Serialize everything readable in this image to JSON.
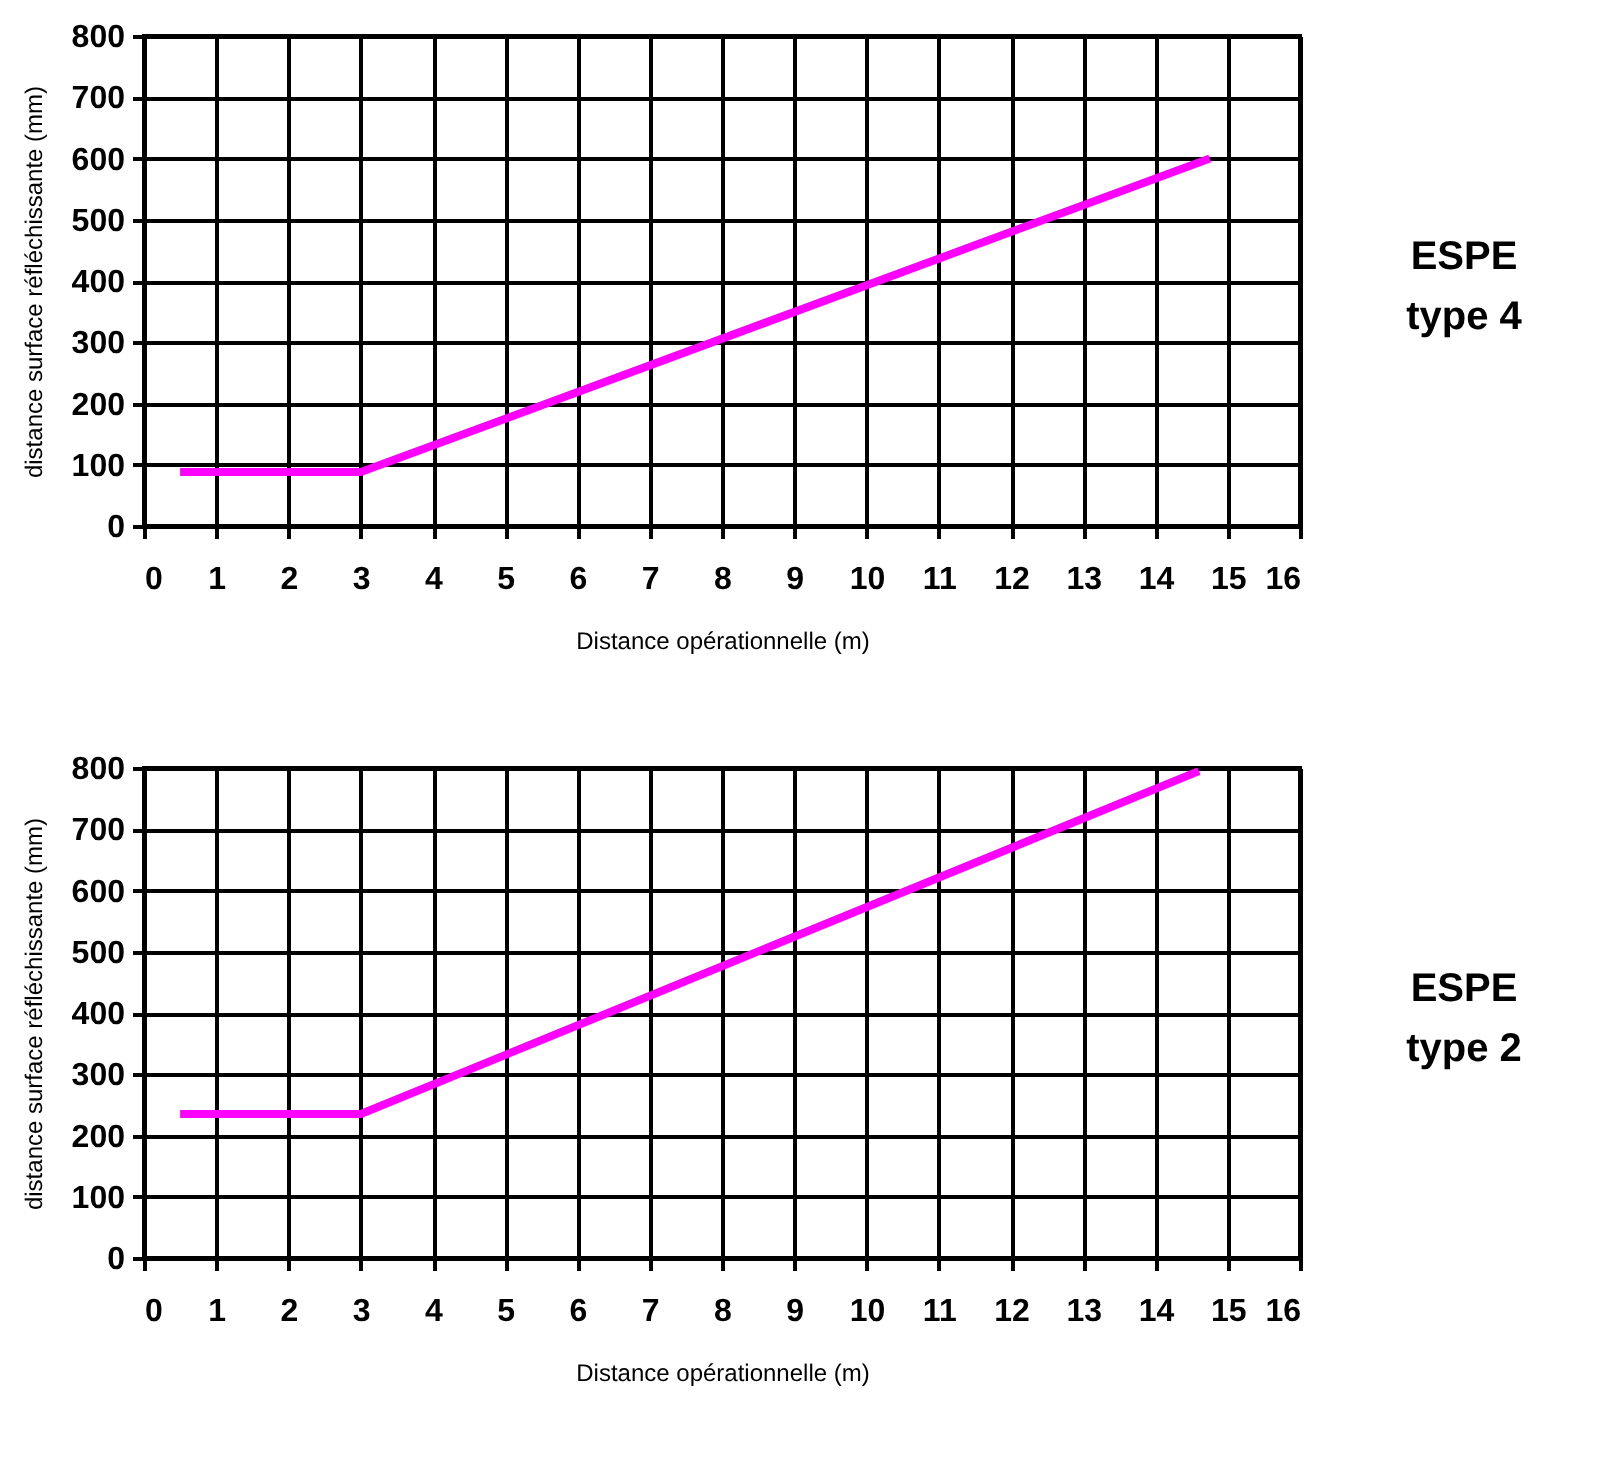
{
  "chart_data": [
    {
      "type": "line",
      "x": [
        0.5,
        3,
        14.75
      ],
      "series": [
        {
          "color": "#ff00ff",
          "values": [
            88,
            88,
            600
          ]
        }
      ],
      "xlim": [
        0,
        16
      ],
      "xticks": [
        0,
        1,
        2,
        3,
        4,
        5,
        6,
        7,
        8,
        9,
        10,
        11,
        12,
        13,
        14,
        15,
        16
      ],
      "ylim": [
        0,
        800
      ],
      "yticks": [
        0,
        100,
        200,
        300,
        400,
        500,
        600,
        700,
        800
      ],
      "xlabel": "Distance opérationnelle (m)",
      "ylabel": "distance surface réfléchissante (mm)",
      "annotations": [
        "ESPE type 4"
      ],
      "grid": true
    },
    {
      "type": "line",
      "x": [
        0.5,
        3,
        14.6
      ],
      "series": [
        {
          "color": "#ff00ff",
          "values": [
            235,
            235,
            795
          ]
        }
      ],
      "xlim": [
        0,
        16
      ],
      "xticks": [
        0,
        1,
        2,
        3,
        4,
        5,
        6,
        7,
        8,
        9,
        10,
        11,
        12,
        13,
        14,
        15,
        16
      ],
      "ylim": [
        0,
        800
      ],
      "yticks": [
        0,
        100,
        200,
        300,
        400,
        500,
        600,
        700,
        800
      ],
      "xlabel": "Distance opérationnelle (m)",
      "ylabel": "distance surface réfléchissante (mm)",
      "annotations": [
        "ESPE type 2"
      ],
      "grid": true
    }
  ]
}
